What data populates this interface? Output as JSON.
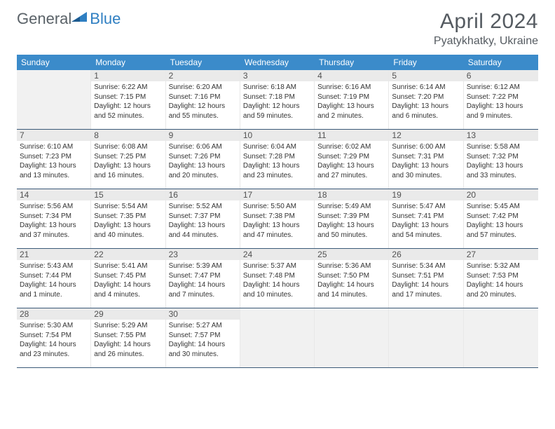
{
  "brand": {
    "t1": "General",
    "t2": "Blue"
  },
  "title": "April 2024",
  "location": "Pyatykhatky, Ukraine",
  "colors": {
    "header_bg": "#3b8bca",
    "header_text": "#ffffff",
    "daynum_bg": "#eaeaea",
    "daynum_text": "#525252",
    "blank_bg": "#f1f1f1",
    "week_border": "#3b5a78",
    "brand_gray": "#5a6268",
    "brand_blue": "#2f7fc2",
    "title_color": "#555b61"
  },
  "dayNames": [
    "Sunday",
    "Monday",
    "Tuesday",
    "Wednesday",
    "Thursday",
    "Friday",
    "Saturday"
  ],
  "weeks": [
    [
      {
        "blank": true
      },
      {
        "n": "1",
        "sr": "6:22 AM",
        "ss": "7:15 PM",
        "dl": "12 hours and 52 minutes."
      },
      {
        "n": "2",
        "sr": "6:20 AM",
        "ss": "7:16 PM",
        "dl": "12 hours and 55 minutes."
      },
      {
        "n": "3",
        "sr": "6:18 AM",
        "ss": "7:18 PM",
        "dl": "12 hours and 59 minutes."
      },
      {
        "n": "4",
        "sr": "6:16 AM",
        "ss": "7:19 PM",
        "dl": "13 hours and 2 minutes."
      },
      {
        "n": "5",
        "sr": "6:14 AM",
        "ss": "7:20 PM",
        "dl": "13 hours and 6 minutes."
      },
      {
        "n": "6",
        "sr": "6:12 AM",
        "ss": "7:22 PM",
        "dl": "13 hours and 9 minutes."
      }
    ],
    [
      {
        "n": "7",
        "sr": "6:10 AM",
        "ss": "7:23 PM",
        "dl": "13 hours and 13 minutes."
      },
      {
        "n": "8",
        "sr": "6:08 AM",
        "ss": "7:25 PM",
        "dl": "13 hours and 16 minutes."
      },
      {
        "n": "9",
        "sr": "6:06 AM",
        "ss": "7:26 PM",
        "dl": "13 hours and 20 minutes."
      },
      {
        "n": "10",
        "sr": "6:04 AM",
        "ss": "7:28 PM",
        "dl": "13 hours and 23 minutes."
      },
      {
        "n": "11",
        "sr": "6:02 AM",
        "ss": "7:29 PM",
        "dl": "13 hours and 27 minutes."
      },
      {
        "n": "12",
        "sr": "6:00 AM",
        "ss": "7:31 PM",
        "dl": "13 hours and 30 minutes."
      },
      {
        "n": "13",
        "sr": "5:58 AM",
        "ss": "7:32 PM",
        "dl": "13 hours and 33 minutes."
      }
    ],
    [
      {
        "n": "14",
        "sr": "5:56 AM",
        "ss": "7:34 PM",
        "dl": "13 hours and 37 minutes."
      },
      {
        "n": "15",
        "sr": "5:54 AM",
        "ss": "7:35 PM",
        "dl": "13 hours and 40 minutes."
      },
      {
        "n": "16",
        "sr": "5:52 AM",
        "ss": "7:37 PM",
        "dl": "13 hours and 44 minutes."
      },
      {
        "n": "17",
        "sr": "5:50 AM",
        "ss": "7:38 PM",
        "dl": "13 hours and 47 minutes."
      },
      {
        "n": "18",
        "sr": "5:49 AM",
        "ss": "7:39 PM",
        "dl": "13 hours and 50 minutes."
      },
      {
        "n": "19",
        "sr": "5:47 AM",
        "ss": "7:41 PM",
        "dl": "13 hours and 54 minutes."
      },
      {
        "n": "20",
        "sr": "5:45 AM",
        "ss": "7:42 PM",
        "dl": "13 hours and 57 minutes."
      }
    ],
    [
      {
        "n": "21",
        "sr": "5:43 AM",
        "ss": "7:44 PM",
        "dl": "14 hours and 1 minute."
      },
      {
        "n": "22",
        "sr": "5:41 AM",
        "ss": "7:45 PM",
        "dl": "14 hours and 4 minutes."
      },
      {
        "n": "23",
        "sr": "5:39 AM",
        "ss": "7:47 PM",
        "dl": "14 hours and 7 minutes."
      },
      {
        "n": "24",
        "sr": "5:37 AM",
        "ss": "7:48 PM",
        "dl": "14 hours and 10 minutes."
      },
      {
        "n": "25",
        "sr": "5:36 AM",
        "ss": "7:50 PM",
        "dl": "14 hours and 14 minutes."
      },
      {
        "n": "26",
        "sr": "5:34 AM",
        "ss": "7:51 PM",
        "dl": "14 hours and 17 minutes."
      },
      {
        "n": "27",
        "sr": "5:32 AM",
        "ss": "7:53 PM",
        "dl": "14 hours and 20 minutes."
      }
    ],
    [
      {
        "n": "28",
        "sr": "5:30 AM",
        "ss": "7:54 PM",
        "dl": "14 hours and 23 minutes."
      },
      {
        "n": "29",
        "sr": "5:29 AM",
        "ss": "7:55 PM",
        "dl": "14 hours and 26 minutes."
      },
      {
        "n": "30",
        "sr": "5:27 AM",
        "ss": "7:57 PM",
        "dl": "14 hours and 30 minutes."
      },
      {
        "blank": true
      },
      {
        "blank": true
      },
      {
        "blank": true
      },
      {
        "blank": true
      }
    ]
  ],
  "labels": {
    "sunrise": "Sunrise: ",
    "sunset": "Sunset: ",
    "daylight": "Daylight: "
  }
}
